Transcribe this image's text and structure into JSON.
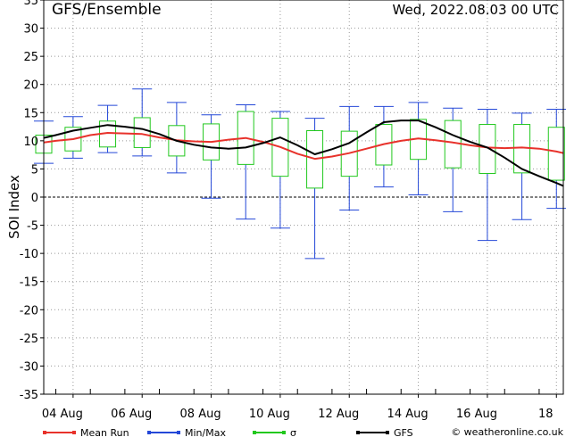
{
  "header": {
    "title": "GFS/Ensemble",
    "datetime": "Wed, 2022.08.03   00 UTC"
  },
  "footer": {
    "credit": "© weatheronline.co.uk"
  },
  "colors": {
    "mean": "#e8322b",
    "minmax": "#2448d8",
    "sigma": "#22c81e",
    "gfs": "#000000",
    "grid": "#999999"
  },
  "chart_data": {
    "type": "line",
    "ylabel": "SOI Index",
    "xlabel": "",
    "ylim": [
      -35,
      35
    ],
    "yticks": [
      35,
      30,
      25,
      20,
      15,
      10,
      5,
      0,
      -5,
      -10,
      -15,
      -20,
      -25,
      -30,
      -35
    ],
    "grid": true,
    "x_tick_labels": [
      {
        "label": "04 Aug",
        "day": 1
      },
      {
        "label": "06 Aug",
        "day": 3
      },
      {
        "label": "08 Aug",
        "day": 5
      },
      {
        "label": "10 Aug",
        "day": 7
      },
      {
        "label": "12 Aug",
        "day": 9
      },
      {
        "label": "14 Aug",
        "day": 11
      },
      {
        "label": "16 Aug",
        "day": 13
      },
      {
        "label": "18",
        "day": 15
      }
    ],
    "x_range": [
      0.15,
      15.2
    ],
    "days": [
      0.15,
      0.5,
      1,
      1.5,
      2,
      2.5,
      3,
      3.5,
      4,
      4.5,
      5,
      5.5,
      6,
      6.5,
      7,
      7.5,
      8,
      8.5,
      9,
      9.5,
      10,
      10.5,
      11,
      11.5,
      12,
      12.5,
      13,
      13.5,
      14,
      14.5,
      15,
      15.2
    ],
    "series": [
      {
        "name": "Mean Run",
        "values": [
          9.7,
          10,
          10.3,
          11,
          11.4,
          11.3,
          11.2,
          10.6,
          10.1,
          9.9,
          9.8,
          10.2,
          10.5,
          9.8,
          8.9,
          7.7,
          6.8,
          7.2,
          7.8,
          8.6,
          9.4,
          10,
          10.4,
          10.1,
          9.7,
          9.2,
          8.8,
          8.7,
          8.8,
          8.6,
          8.1,
          7.8
        ]
      },
      {
        "name": "GFS",
        "values": [
          10.5,
          11,
          11.8,
          12.3,
          12.8,
          12.5,
          12.1,
          11.2,
          10,
          9.3,
          8.8,
          8.6,
          8.8,
          9.6,
          10.6,
          9.2,
          7.6,
          8.5,
          9.6,
          11.5,
          13.3,
          13.6,
          13.6,
          12.4,
          11,
          9.8,
          8.8,
          7,
          5,
          3.7,
          2.5,
          2.0
        ]
      }
    ],
    "ensemble_boxes": [
      {
        "day": 0.15,
        "min": 6.0,
        "max": 13.5,
        "lo": 7.8,
        "hi": 11.0
      },
      {
        "day": 1,
        "min": 6.9,
        "max": 14.3,
        "lo": 8.2,
        "hi": 12.4
      },
      {
        "day": 2,
        "min": 7.9,
        "max": 16.3,
        "lo": 8.9,
        "hi": 13.5
      },
      {
        "day": 3,
        "min": 7.3,
        "max": 19.2,
        "lo": 8.8,
        "hi": 14.1
      },
      {
        "day": 4,
        "min": 4.3,
        "max": 16.8,
        "lo": 7.3,
        "hi": 12.7
      },
      {
        "day": 5,
        "min": -0.2,
        "max": 14.6,
        "lo": 6.6,
        "hi": 13.0
      },
      {
        "day": 6,
        "min": -3.9,
        "max": 16.4,
        "lo": 5.8,
        "hi": 15.2
      },
      {
        "day": 7,
        "min": -5.5,
        "max": 15.2,
        "lo": 3.7,
        "hi": 14.0
      },
      {
        "day": 8,
        "min": -10.9,
        "max": 14.0,
        "lo": 1.6,
        "hi": 11.8
      },
      {
        "day": 9,
        "min": -2.3,
        "max": 16.1,
        "lo": 3.7,
        "hi": 11.7
      },
      {
        "day": 10,
        "min": 1.8,
        "max": 16.1,
        "lo": 5.7,
        "hi": 12.9
      },
      {
        "day": 11,
        "min": 0.4,
        "max": 16.8,
        "lo": 6.7,
        "hi": 13.8
      },
      {
        "day": 12,
        "min": -2.6,
        "max": 15.8,
        "lo": 5.2,
        "hi": 13.6
      },
      {
        "day": 13,
        "min": -7.7,
        "max": 15.6,
        "lo": 4.2,
        "hi": 12.9
      },
      {
        "day": 14,
        "min": -4.0,
        "max": 14.9,
        "lo": 4.3,
        "hi": 12.9
      },
      {
        "day": 15,
        "min": -2.0,
        "max": 15.6,
        "lo": 3.0,
        "hi": 12.4
      }
    ],
    "legend": [
      {
        "name": "Mean Run",
        "color": "#e8322b"
      },
      {
        "name": "Min/Max",
        "color": "#2448d8"
      },
      {
        "name": "σ",
        "color": "#22c81e"
      },
      {
        "name": "GFS",
        "color": "#000000"
      }
    ]
  }
}
